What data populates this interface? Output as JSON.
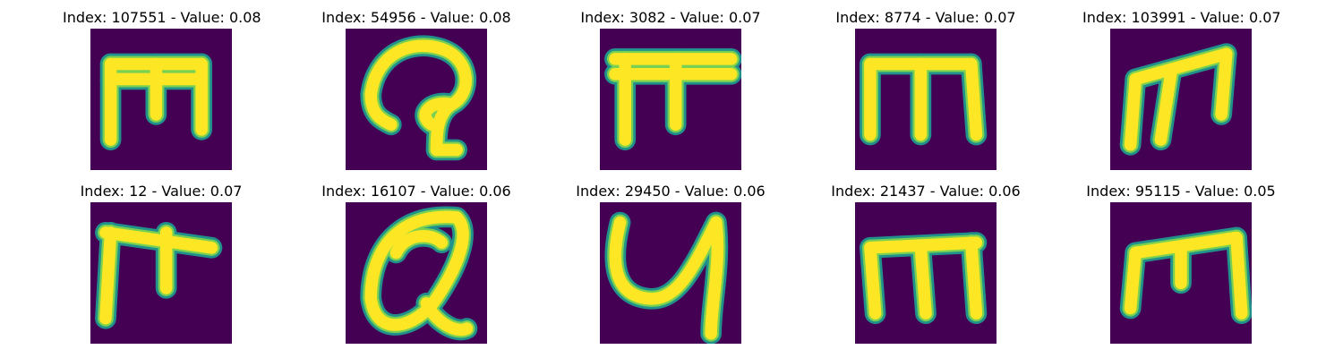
{
  "figure": {
    "panels": [
      {
        "title": "Index: 107551 - Value: 0.08",
        "glyph": "m-block"
      },
      {
        "title": "Index: 54956 - Value: 0.08",
        "glyph": "curl-q"
      },
      {
        "title": "Index: 3082 - Value: 0.07",
        "glyph": "pi-bar"
      },
      {
        "title": "Index: 8774 - Value: 0.07",
        "glyph": "m-three-leg"
      },
      {
        "title": "Index: 103991 - Value: 0.07",
        "glyph": "m-slanted"
      },
      {
        "title": "Index: 12 - Value: 0.07",
        "glyph": "t-hook"
      },
      {
        "title": "Index: 16107 - Value: 0.06",
        "glyph": "q-loop"
      },
      {
        "title": "Index: 29450 - Value: 0.06",
        "glyph": "y-curve"
      },
      {
        "title": "Index: 21437 - Value: 0.06",
        "glyph": "m-thick"
      },
      {
        "title": "Index: 95115 - Value: 0.05",
        "glyph": "m-thin"
      }
    ],
    "colormap": {
      "background": "#440154",
      "edge": "#21918c",
      "mid": "#7ad151",
      "foreground": "#fde725"
    }
  }
}
